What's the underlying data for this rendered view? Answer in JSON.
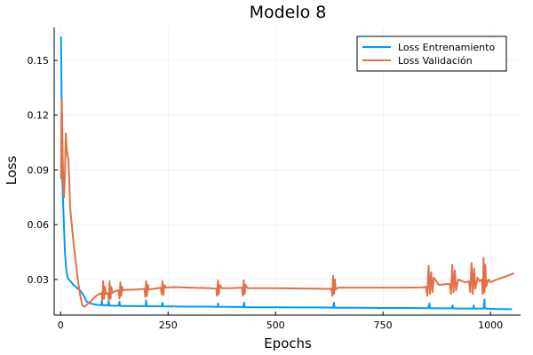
{
  "chart_data": {
    "type": "line",
    "title": "Modelo 8",
    "xlabel": "Epochs",
    "ylabel": "Loss",
    "xlim": [
      -15,
      1070
    ],
    "ylim": [
      0.0105,
      0.168
    ],
    "xticks": [
      0,
      250,
      500,
      750,
      1000
    ],
    "xtick_labels": [
      "0",
      "250",
      "500",
      "750",
      "1000"
    ],
    "yticks": [
      0.03,
      0.06,
      0.09,
      0.12,
      0.15
    ],
    "ytick_labels": [
      "0.03",
      "0.06",
      "0.09",
      "0.12",
      "0.15"
    ],
    "grid": true,
    "legend_position": "top-right",
    "series": [
      {
        "name": "Loss Entrenamiento",
        "color": "#009af9",
        "x": [
          1,
          2,
          3,
          4,
          6,
          8,
          10,
          13,
          16,
          20,
          25,
          30,
          35,
          40,
          45,
          50,
          55,
          60,
          70,
          80,
          90,
          95,
          96,
          97,
          100,
          110,
          112,
          113,
          116,
          125,
          135,
          137,
          138,
          141,
          150,
          175,
          198,
          199,
          200,
          203,
          210,
          235,
          237,
          238,
          241,
          250,
          300,
          350,
          365,
          366,
          367,
          370,
          380,
          400,
          425,
          427,
          428,
          431,
          440,
          500,
          550,
          600,
          634,
          636,
          637,
          640,
          650,
          700,
          750,
          800,
          855,
          858,
          859,
          862,
          870,
          900,
          910,
          912,
          913,
          916,
          930,
          950,
          960,
          961,
          962,
          965,
          975,
          984,
          986,
          987,
          990,
          1000,
          1020,
          1050
        ],
        "values": [
          0.163,
          0.14,
          0.11,
          0.085,
          0.07,
          0.058,
          0.045,
          0.036,
          0.031,
          0.0298,
          0.0285,
          0.027,
          0.026,
          0.025,
          0.024,
          0.0225,
          0.0205,
          0.018,
          0.0168,
          0.0163,
          0.016,
          0.016,
          0.0185,
          0.016,
          0.0159,
          0.0158,
          0.0182,
          0.0157,
          0.0157,
          0.0156,
          0.0156,
          0.0178,
          0.0156,
          0.0155,
          0.0155,
          0.0154,
          0.0154,
          0.0185,
          0.0154,
          0.0153,
          0.0153,
          0.0153,
          0.0172,
          0.0153,
          0.0152,
          0.0152,
          0.0151,
          0.0151,
          0.015,
          0.0168,
          0.015,
          0.015,
          0.015,
          0.0149,
          0.0149,
          0.0173,
          0.0149,
          0.0148,
          0.0148,
          0.0148,
          0.0147,
          0.0147,
          0.0146,
          0.0172,
          0.0146,
          0.0145,
          0.0145,
          0.0145,
          0.0144,
          0.0144,
          0.0143,
          0.0168,
          0.0143,
          0.0143,
          0.0142,
          0.0142,
          0.0142,
          0.0158,
          0.0142,
          0.0141,
          0.0141,
          0.0141,
          0.0141,
          0.0158,
          0.0141,
          0.014,
          0.014,
          0.014,
          0.019,
          0.0142,
          0.014,
          0.0139,
          0.0138,
          0.0137
        ]
      },
      {
        "name": "Loss Validación",
        "color": "#e26f46",
        "x": [
          1,
          2,
          3,
          4,
          5,
          6,
          8,
          10,
          12,
          14,
          16,
          18,
          20,
          22,
          25,
          30,
          35,
          40,
          45,
          50,
          55,
          60,
          70,
          80,
          90,
          95,
          97,
          99,
          101,
          103,
          105,
          110,
          112,
          114,
          116,
          118,
          120,
          125,
          130,
          135,
          137,
          139,
          141,
          143,
          145,
          150,
          175,
          195,
          197,
          199,
          201,
          203,
          205,
          210,
          225,
          233,
          235,
          237,
          239,
          241,
          245,
          260,
          300,
          350,
          362,
          364,
          366,
          368,
          370,
          375,
          400,
          422,
          424,
          426,
          428,
          430,
          435,
          500,
          550,
          600,
          630,
          632,
          634,
          636,
          638,
          640,
          645,
          700,
          750,
          800,
          840,
          850,
          853,
          856,
          859,
          862,
          865,
          868,
          880,
          900,
          905,
          908,
          911,
          914,
          917,
          920,
          925,
          940,
          945,
          950,
          953,
          956,
          959,
          962,
          965,
          970,
          975,
          980,
          982,
          984,
          986,
          988,
          990,
          995,
          1000,
          1020,
          1040,
          1055
        ],
        "values": [
          0.085,
          0.12,
          0.128,
          0.108,
          0.095,
          0.083,
          0.075,
          0.088,
          0.11,
          0.102,
          0.098,
          0.096,
          0.085,
          0.07,
          0.062,
          0.05,
          0.04,
          0.03,
          0.022,
          0.016,
          0.015,
          0.016,
          0.018,
          0.0205,
          0.022,
          0.0225,
          0.0185,
          0.029,
          0.0195,
          0.026,
          0.022,
          0.0225,
          0.019,
          0.029,
          0.0195,
          0.026,
          0.0225,
          0.0235,
          0.0238,
          0.024,
          0.0195,
          0.0285,
          0.021,
          0.026,
          0.024,
          0.0243,
          0.0245,
          0.0248,
          0.0205,
          0.029,
          0.021,
          0.027,
          0.0245,
          0.0247,
          0.0252,
          0.0255,
          0.022,
          0.029,
          0.0215,
          0.027,
          0.0255,
          0.0258,
          0.0255,
          0.0252,
          0.025,
          0.021,
          0.0295,
          0.022,
          0.027,
          0.0252,
          0.0253,
          0.0255,
          0.021,
          0.0295,
          0.022,
          0.027,
          0.0253,
          0.0252,
          0.0251,
          0.025,
          0.0248,
          0.021,
          0.032,
          0.022,
          0.03,
          0.0245,
          0.0255,
          0.0255,
          0.0255,
          0.0255,
          0.0256,
          0.026,
          0.021,
          0.0375,
          0.022,
          0.034,
          0.023,
          0.031,
          0.027,
          0.0275,
          0.0275,
          0.022,
          0.038,
          0.023,
          0.035,
          0.024,
          0.03,
          0.0285,
          0.0285,
          0.029,
          0.023,
          0.039,
          0.022,
          0.036,
          0.025,
          0.031,
          0.029,
          0.03,
          0.022,
          0.042,
          0.023,
          0.038,
          0.026,
          0.03,
          0.0285,
          0.0305,
          0.032,
          0.0335
        ]
      }
    ]
  }
}
